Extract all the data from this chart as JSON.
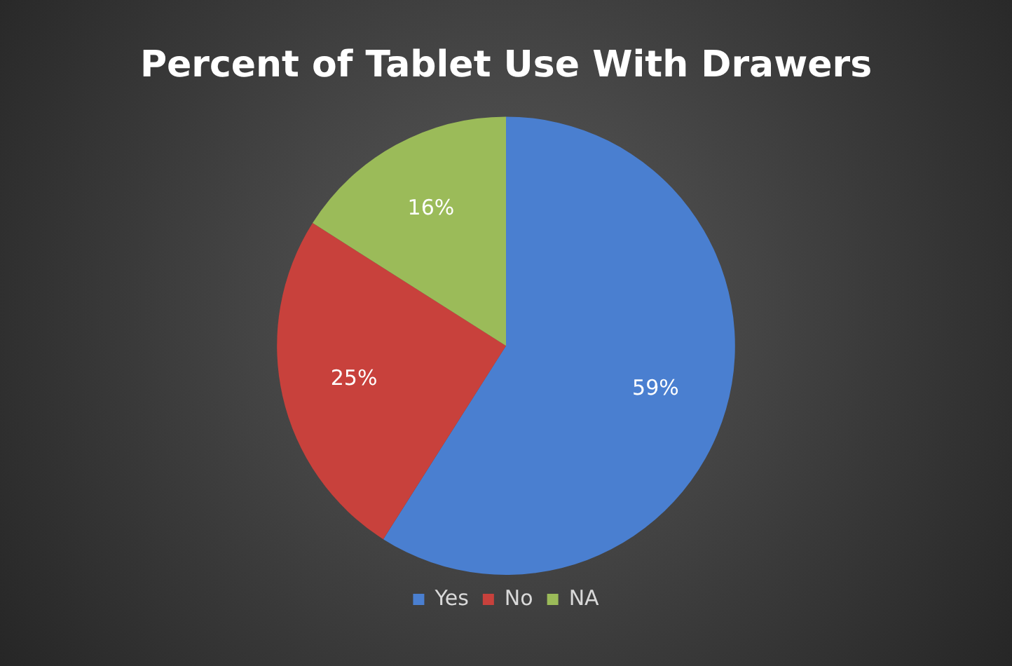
{
  "chart_data": {
    "type": "pie",
    "title": "Percent of Tablet Use With Drawers",
    "categories": [
      "Yes",
      "No",
      "NA"
    ],
    "values": [
      59,
      25,
      16
    ],
    "colors": [
      "#4a7fd0",
      "#c8413c",
      "#9bbb59"
    ],
    "value_labels": [
      "59%",
      "25%",
      "16%"
    ],
    "legend": "bottom"
  }
}
